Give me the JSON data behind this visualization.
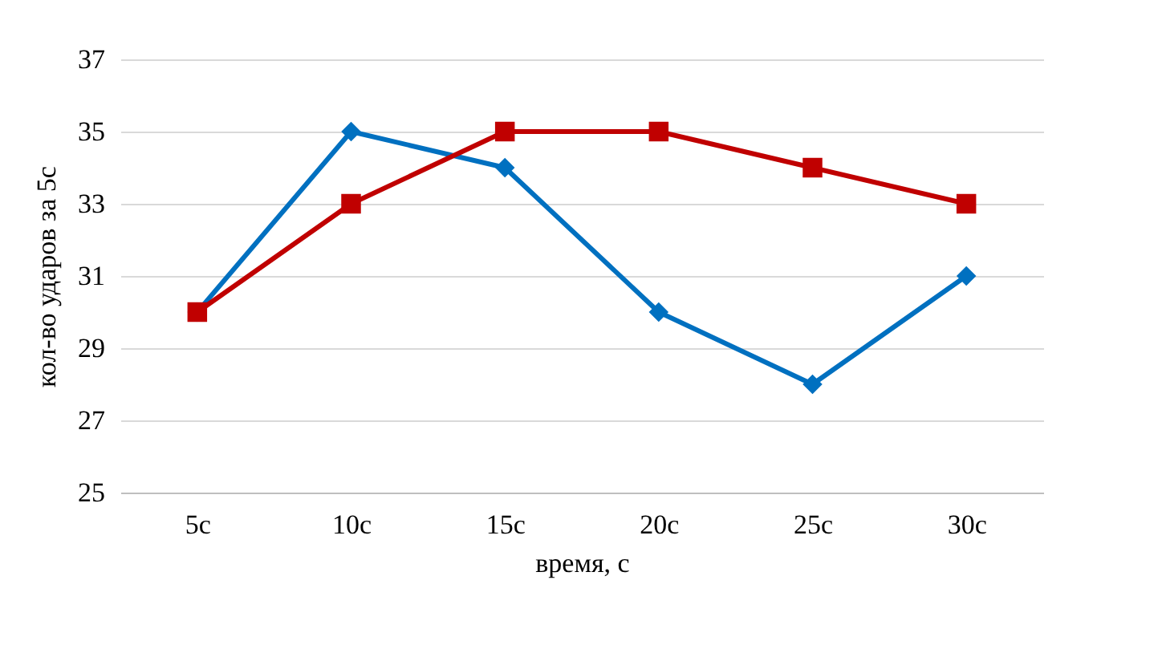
{
  "chart_data": {
    "type": "line",
    "xlabel": "время, с",
    "ylabel": "кол-во ударов за 5с",
    "categories": [
      "5с",
      "10с",
      "15с",
      "20с",
      "25с",
      "30с"
    ],
    "series": [
      {
        "color": "#0070c0",
        "marker": "diamond",
        "values": [
          30,
          35,
          34,
          30,
          28,
          31
        ]
      },
      {
        "color": "#c00000",
        "marker": "square",
        "values": [
          30,
          33,
          35,
          35,
          34,
          33
        ]
      }
    ],
    "ylim": [
      25,
      37
    ],
    "yticks": [
      25,
      27,
      29,
      31,
      33,
      35,
      37
    ],
    "grid": "y",
    "legend": false
  }
}
